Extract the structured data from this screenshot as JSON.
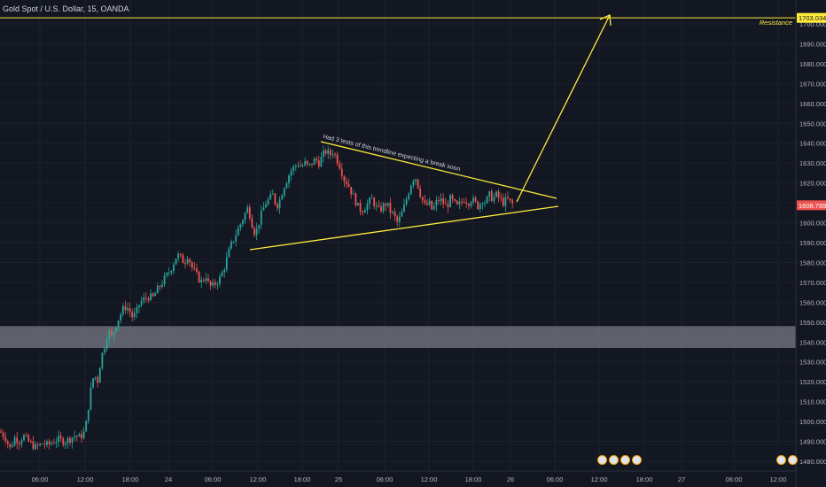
{
  "header": {
    "title": "Gold Spot / U.S. Dollar, 15, OANDA"
  },
  "chart_data": {
    "type": "candlestick",
    "title": "Gold Spot / U.S. Dollar, 15, OANDA",
    "y_axis": {
      "ticks": [
        "1700.000",
        "1690.000",
        "1680.000",
        "1670.000",
        "1660.000",
        "1650.000",
        "1640.000",
        "1630.000",
        "1620.000",
        "1610.000",
        "1600.000",
        "1590.000",
        "1580.000",
        "1570.000",
        "1560.000",
        "1550.000",
        "1540.000",
        "1530.000",
        "1520.000",
        "1510.000",
        "1500.000",
        "1490.000",
        "1480.000"
      ],
      "ylim": [
        1478,
        1704
      ]
    },
    "x_axis": {
      "ticks": [
        "06:00",
        "12:00",
        "18:00",
        "24",
        "06:00",
        "12:00",
        "18:00",
        "25",
        "06:00",
        "12:00",
        "18:00",
        "26",
        "06:00",
        "12:00",
        "18:00",
        "27",
        "06:00",
        "12:00"
      ]
    },
    "resistance": {
      "value": 1703.034,
      "label": "Resistance",
      "price_label": "1703.034",
      "color": "#ffeb3b"
    },
    "last_price": {
      "value": 1608.789,
      "label": "1608.789",
      "color": "#ef5350"
    },
    "support_zone": {
      "from": 1537,
      "to": 1548,
      "color": "#787b86"
    },
    "annotation": {
      "text": "Had 3 tests of this trendline expecting a break soon"
    },
    "colors": {
      "up": "#26a69a",
      "down": "#ef5350",
      "drawing": "#ffeb3b",
      "background": "#131722"
    },
    "series_path": [
      [
        0,
        1495
      ],
      [
        6,
        1492
      ],
      [
        12,
        1486
      ],
      [
        16,
        1492
      ],
      [
        22,
        1490
      ],
      [
        26,
        1493
      ],
      [
        32,
        1490
      ],
      [
        40,
        1487
      ],
      [
        48,
        1489
      ],
      [
        54,
        1488
      ],
      [
        60,
        1490
      ],
      [
        66,
        1491
      ],
      [
        72,
        1490
      ],
      [
        78,
        1491
      ],
      [
        84,
        1493
      ],
      [
        90,
        1492
      ],
      [
        96,
        1495
      ],
      [
        102,
        1515
      ],
      [
        106,
        1524
      ],
      [
        110,
        1520
      ],
      [
        114,
        1532
      ],
      [
        118,
        1538
      ],
      [
        122,
        1546
      ],
      [
        126,
        1542
      ],
      [
        130,
        1548
      ],
      [
        134,
        1552
      ],
      [
        138,
        1556
      ],
      [
        142,
        1558
      ],
      [
        146,
        1556
      ],
      [
        150,
        1552
      ],
      [
        154,
        1555
      ],
      [
        158,
        1560
      ],
      [
        164,
        1562
      ],
      [
        168,
        1563
      ],
      [
        172,
        1562
      ],
      [
        176,
        1565
      ],
      [
        180,
        1568
      ],
      [
        186,
        1572
      ],
      [
        192,
        1576
      ],
      [
        196,
        1580
      ],
      [
        200,
        1584
      ],
      [
        204,
        1582
      ],
      [
        208,
        1580
      ],
      [
        212,
        1584
      ],
      [
        216,
        1578
      ],
      [
        220,
        1575
      ],
      [
        224,
        1572
      ],
      [
        228,
        1570
      ],
      [
        232,
        1574
      ],
      [
        236,
        1568
      ],
      [
        240,
        1568
      ],
      [
        244,
        1570
      ],
      [
        248,
        1572
      ],
      [
        252,
        1576
      ],
      [
        256,
        1582
      ],
      [
        260,
        1588
      ],
      [
        264,
        1592
      ],
      [
        268,
        1596
      ],
      [
        272,
        1600
      ],
      [
        276,
        1604
      ],
      [
        280,
        1608
      ],
      [
        284,
        1600
      ],
      [
        288,
        1594
      ],
      [
        292,
        1600
      ],
      [
        296,
        1606
      ],
      [
        300,
        1610
      ],
      [
        304,
        1612
      ],
      [
        308,
        1614
      ],
      [
        312,
        1608
      ],
      [
        316,
        1612
      ],
      [
        320,
        1618
      ],
      [
        324,
        1622
      ],
      [
        328,
        1626
      ],
      [
        332,
        1628
      ],
      [
        336,
        1630
      ],
      [
        340,
        1628
      ],
      [
        344,
        1630
      ],
      [
        348,
        1628
      ],
      [
        352,
        1630
      ],
      [
        356,
        1632
      ],
      [
        360,
        1630
      ],
      [
        364,
        1634
      ],
      [
        368,
        1636
      ],
      [
        372,
        1634
      ],
      [
        376,
        1636
      ],
      [
        380,
        1632
      ],
      [
        384,
        1628
      ],
      [
        388,
        1622
      ],
      [
        392,
        1620
      ],
      [
        396,
        1616
      ],
      [
        400,
        1612
      ],
      [
        404,
        1608
      ],
      [
        408,
        1606
      ],
      [
        412,
        1608
      ],
      [
        416,
        1610
      ],
      [
        420,
        1612
      ],
      [
        424,
        1608
      ],
      [
        428,
        1606
      ],
      [
        432,
        1608
      ],
      [
        436,
        1610
      ],
      [
        440,
        1606
      ],
      [
        444,
        1604
      ],
      [
        448,
        1600
      ],
      [
        452,
        1603
      ],
      [
        456,
        1608
      ],
      [
        460,
        1614
      ],
      [
        464,
        1620
      ],
      [
        468,
        1624
      ],
      [
        472,
        1618
      ],
      [
        476,
        1612
      ],
      [
        480,
        1608
      ],
      [
        484,
        1610
      ],
      [
        488,
        1606
      ],
      [
        492,
        1610
      ],
      [
        496,
        1612
      ],
      [
        500,
        1610
      ],
      [
        504,
        1608
      ],
      [
        508,
        1612
      ],
      [
        512,
        1610
      ],
      [
        516,
        1608
      ],
      [
        520,
        1610
      ],
      [
        524,
        1612
      ],
      [
        528,
        1610
      ],
      [
        532,
        1612
      ],
      [
        536,
        1610
      ],
      [
        540,
        1608
      ],
      [
        544,
        1612
      ],
      [
        548,
        1610
      ],
      [
        552,
        1614
      ],
      [
        556,
        1612
      ],
      [
        560,
        1614
      ],
      [
        564,
        1612
      ],
      [
        568,
        1610
      ],
      [
        572,
        1612
      ],
      [
        576,
        1610
      ],
      [
        580,
        1609
      ]
    ]
  }
}
